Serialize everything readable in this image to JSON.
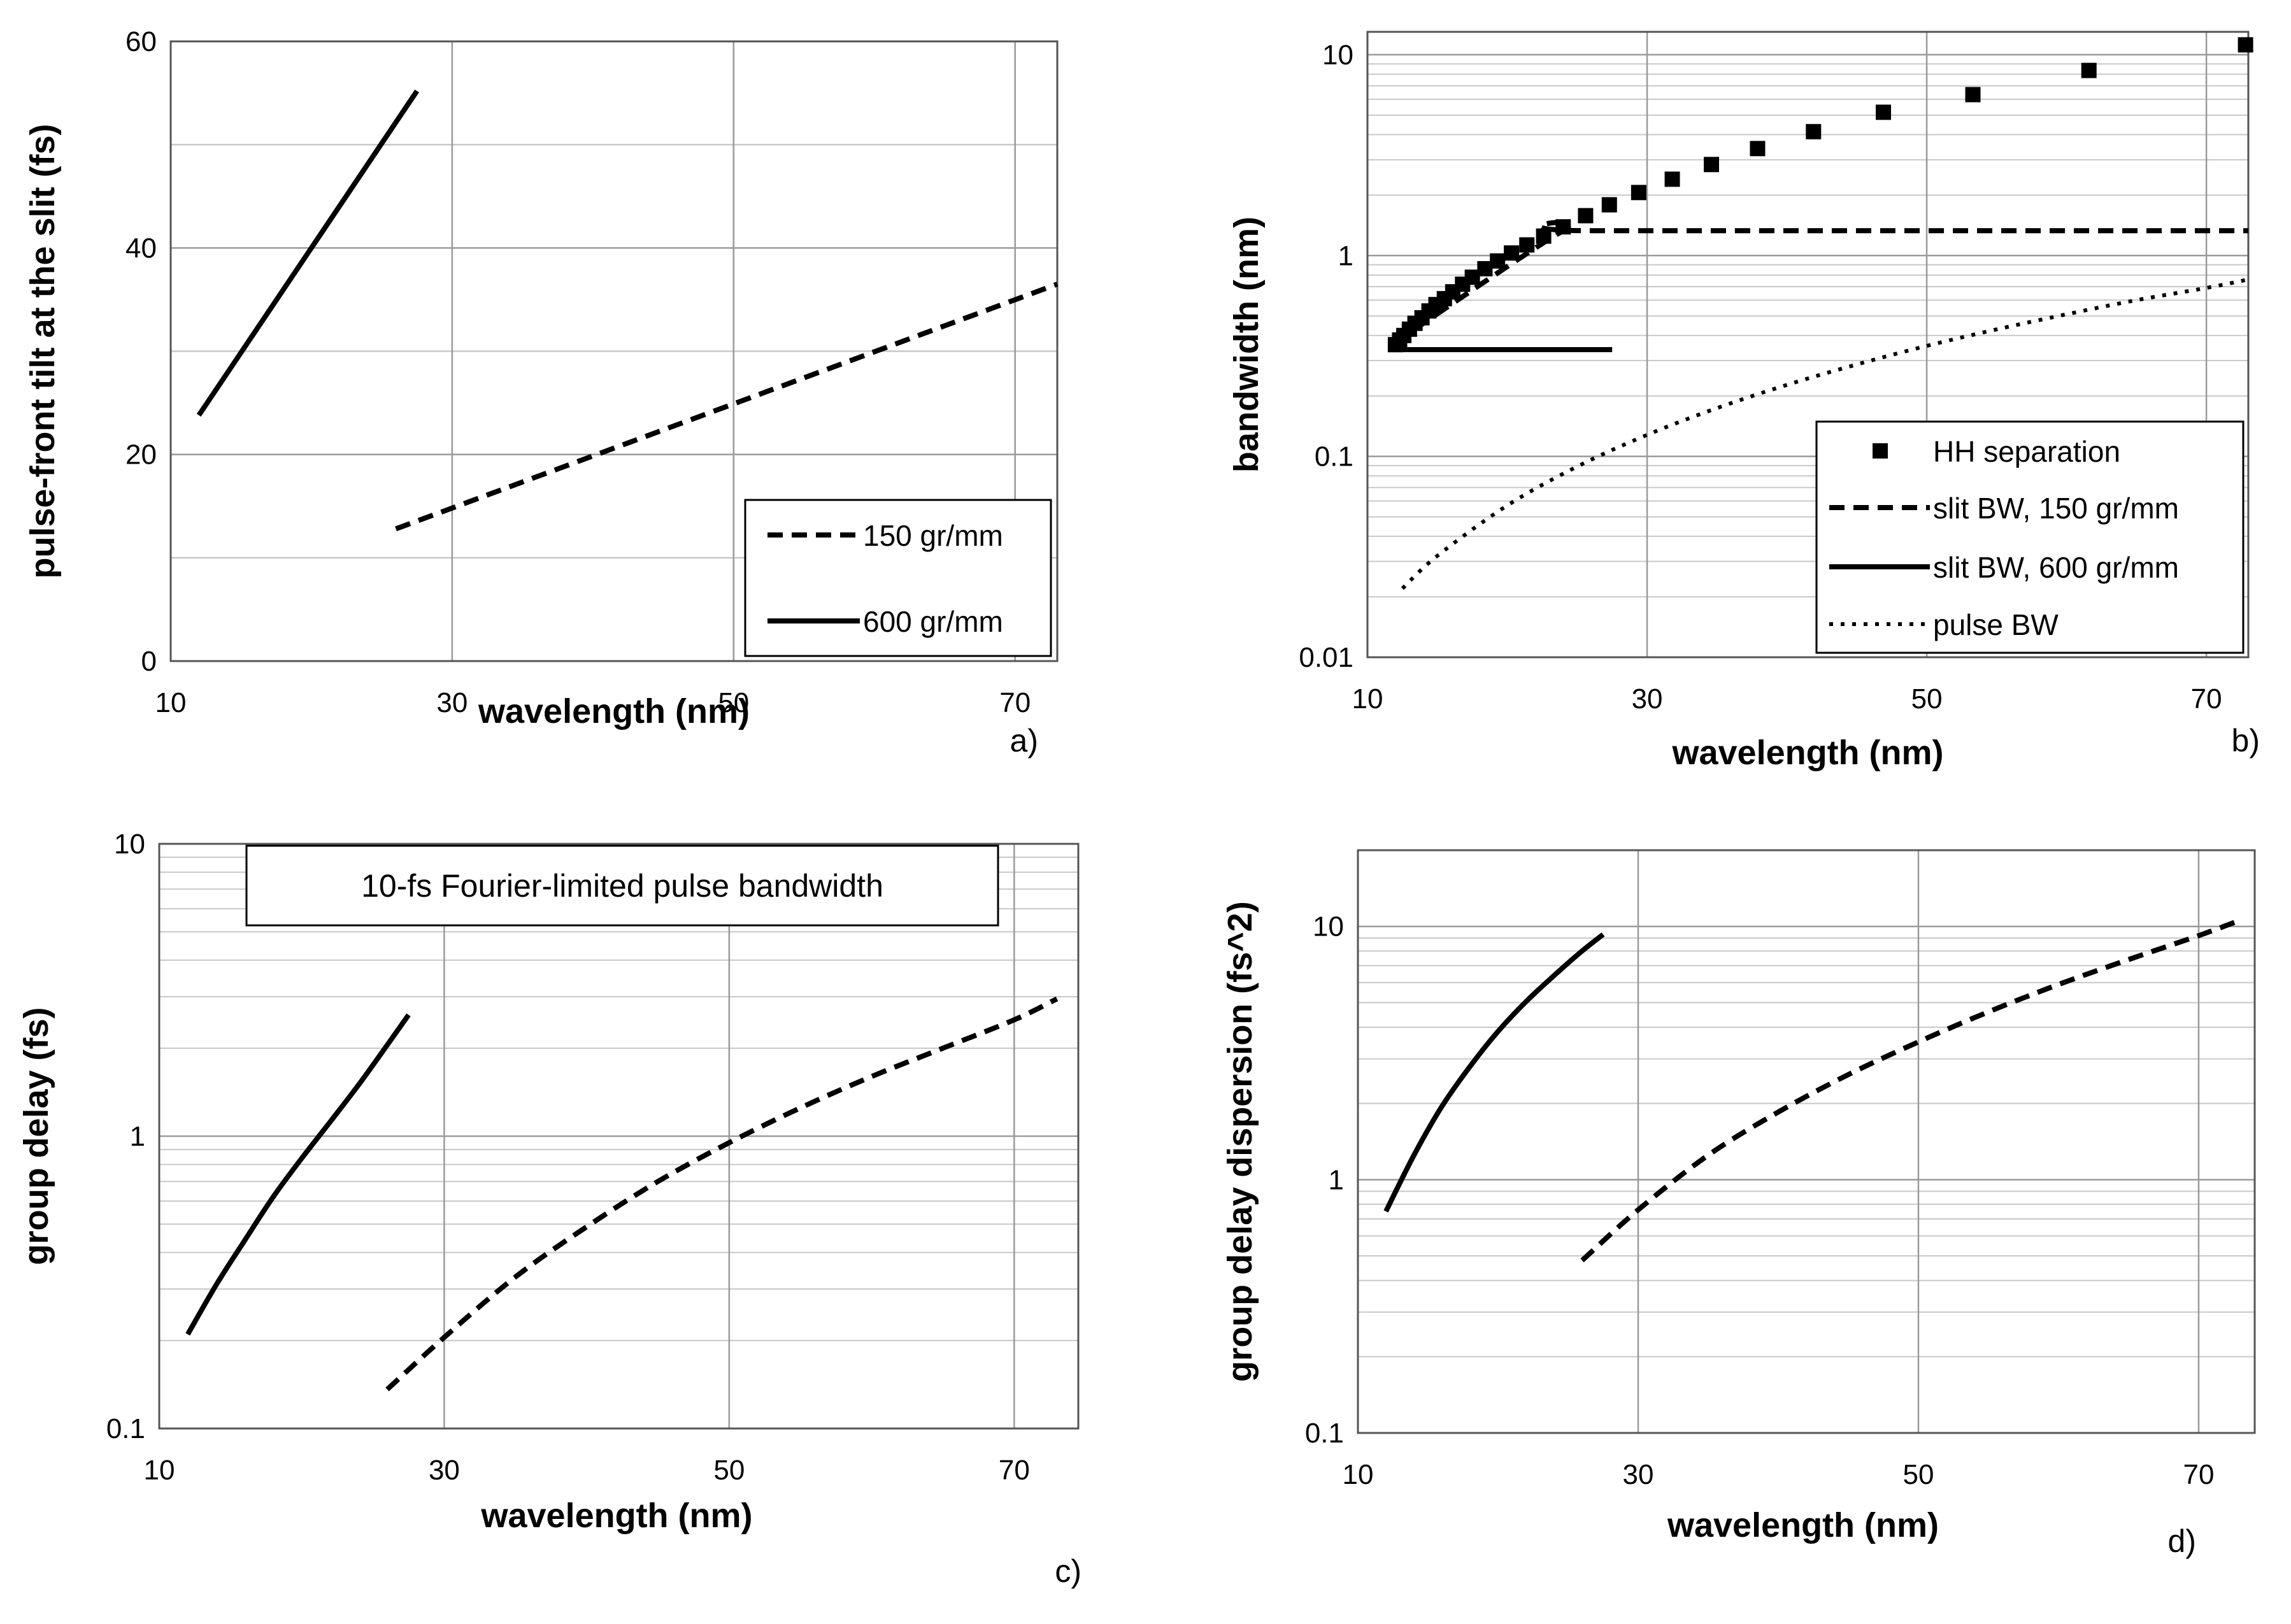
{
  "chart_data": [
    {
      "id": "a",
      "type": "line",
      "panel_label": "a)",
      "xlabel": "wavelength (nm)",
      "ylabel": "pulse-front tilt at the slit (fs)",
      "xlim": [
        10,
        73
      ],
      "ylim": [
        0,
        60
      ],
      "yscale": "linear",
      "x_ticks": [
        10,
        30,
        50,
        70
      ],
      "x_tick_labels": [
        "10",
        "30",
        "50",
        "70"
      ],
      "y_ticks": [
        0,
        20,
        40,
        60
      ],
      "y_tick_labels": [
        "0",
        "20",
        "40",
        "60"
      ],
      "grid": true,
      "legend_position": "bottom-right",
      "series": [
        {
          "name": "150 gr/mm",
          "style": "dashed",
          "x": [
            26,
            73
          ],
          "y": [
            12.8,
            36.5
          ]
        },
        {
          "name": "600 gr/mm",
          "style": "solid",
          "x": [
            12,
            27.5
          ],
          "y": [
            23.8,
            55.2
          ]
        }
      ]
    },
    {
      "id": "b",
      "type": "line",
      "panel_label": "b)",
      "xlabel": "wavelength (nm)",
      "ylabel": "bandwidth (nm)",
      "xlim": [
        10,
        73
      ],
      "ylim": [
        0.01,
        13
      ],
      "yscale": "log",
      "x_ticks": [
        10,
        30,
        50,
        70
      ],
      "x_tick_labels": [
        "10",
        "30",
        "50",
        "70"
      ],
      "y_ticks": [
        0.01,
        0.1,
        1,
        10
      ],
      "y_tick_labels": [
        "0.01",
        "0.1",
        "1",
        "10"
      ],
      "grid": true,
      "legend_position": "bottom-right",
      "series": [
        {
          "name": "HH separation",
          "style": "markers",
          "x": [
            12.0,
            12.3,
            12.6,
            13.0,
            13.4,
            13.9,
            14.4,
            14.9,
            15.5,
            16.1,
            16.8,
            17.5,
            18.4,
            19.3,
            20.3,
            21.4,
            22.6,
            24.0,
            25.6,
            27.3,
            29.4,
            31.8,
            34.6,
            37.9,
            41.9,
            46.9,
            53.3,
            61.6,
            72.8
          ],
          "y": [
            0.36,
            0.38,
            0.4,
            0.43,
            0.46,
            0.49,
            0.53,
            0.57,
            0.61,
            0.66,
            0.72,
            0.78,
            0.86,
            0.94,
            1.03,
            1.13,
            1.25,
            1.39,
            1.58,
            1.79,
            2.06,
            2.4,
            2.84,
            3.41,
            4.14,
            5.17,
            6.33,
            8.35,
            11.2
          ]
        },
        {
          "name": "slit BW, 150 gr/mm",
          "style": "dashed",
          "x": [
            12,
            24,
            26,
            73
          ],
          "y": [
            0.37,
            1.33,
            1.33,
            1.33
          ]
        },
        {
          "name": "slit BW, 600 gr/mm",
          "style": "solid",
          "x": [
            12,
            27.5
          ],
          "y": [
            0.34,
            0.34
          ]
        },
        {
          "name": "pulse BW",
          "style": "dotted",
          "x": [
            12.5,
            15,
            20,
            25,
            30,
            35,
            40,
            45,
            50,
            55,
            60,
            65,
            70,
            73
          ],
          "y": [
            0.022,
            0.032,
            0.057,
            0.089,
            0.128,
            0.174,
            0.227,
            0.287,
            0.355,
            0.429,
            0.51,
            0.6,
            0.69,
            0.76
          ]
        }
      ]
    },
    {
      "id": "c",
      "type": "line",
      "panel_label": "c)",
      "xlabel": "wavelength (nm)",
      "ylabel": "group delay (fs)",
      "xlim": [
        10,
        74.5
      ],
      "ylim": [
        0.1,
        10
      ],
      "yscale": "log",
      "x_ticks": [
        10,
        30,
        50,
        70
      ],
      "x_tick_labels": [
        "10",
        "30",
        "50",
        "70"
      ],
      "y_ticks": [
        0.1,
        1,
        10
      ],
      "y_tick_labels": [
        "0.1",
        "1",
        "10"
      ],
      "grid": true,
      "annotation": "10-fs Fourier-limited pulse bandwidth",
      "series": [
        {
          "name": "150 gr/mm",
          "style": "dashed",
          "x": [
            26,
            30,
            35,
            40,
            45,
            50,
            55,
            60,
            65,
            70,
            73
          ],
          "y": [
            0.136,
            0.205,
            0.33,
            0.49,
            0.7,
            0.95,
            1.25,
            1.6,
            2.0,
            2.5,
            2.95
          ]
        },
        {
          "name": "600 gr/mm",
          "style": "solid",
          "x": [
            12,
            14,
            16,
            18,
            20,
            22,
            24,
            26,
            27.5
          ],
          "y": [
            0.21,
            0.31,
            0.44,
            0.62,
            0.84,
            1.12,
            1.5,
            2.05,
            2.6
          ]
        }
      ]
    },
    {
      "id": "d",
      "type": "line",
      "panel_label": "d)",
      "xlabel": "wavelength (nm)",
      "ylabel": "group delay dispersion (fs^2)",
      "xlim": [
        10,
        74
      ],
      "ylim": [
        0.1,
        20
      ],
      "yscale": "log",
      "x_ticks": [
        10,
        30,
        50,
        70
      ],
      "x_tick_labels": [
        "10",
        "30",
        "50",
        "70"
      ],
      "y_ticks": [
        0.1,
        1,
        10
      ],
      "y_tick_labels": [
        "0.1",
        "1",
        "10"
      ],
      "grid": true,
      "series": [
        {
          "name": "150 gr/mm",
          "style": "dashed",
          "x": [
            26,
            30,
            35,
            40,
            45,
            50,
            55,
            60,
            65,
            70,
            73
          ],
          "y": [
            0.48,
            0.76,
            1.25,
            1.85,
            2.6,
            3.5,
            4.6,
            5.9,
            7.4,
            9.2,
            10.6
          ]
        },
        {
          "name": "600 gr/mm",
          "style": "solid",
          "x": [
            12,
            14,
            16,
            18,
            20,
            22,
            24,
            26,
            27.5
          ],
          "y": [
            0.75,
            1.25,
            1.95,
            2.8,
            3.85,
            5.05,
            6.4,
            8.0,
            9.3
          ]
        }
      ]
    }
  ]
}
